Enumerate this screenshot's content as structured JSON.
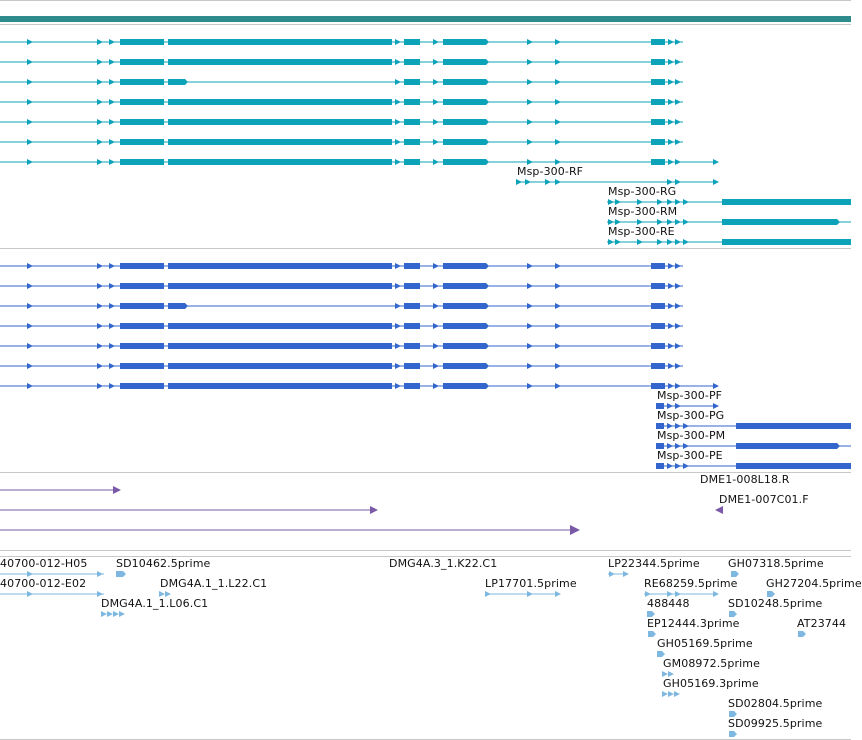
{
  "colors": {
    "scale_bar": "#2f8c8c",
    "track_rna": "#0ca3b8",
    "track_cds": "#3366cc",
    "track_clone": "#7a5aa8",
    "track_est": "#7eb8e0",
    "divider": "#c8c8c8"
  },
  "rna_track": {
    "labels": [
      "Msp-300-RF",
      "Msp-300-RG",
      "Msp-300-RM",
      "Msp-300-RE"
    ]
  },
  "protein_track": {
    "labels": [
      "Msp-300-PF",
      "Msp-300-PG",
      "Msp-300-PM",
      "Msp-300-PE"
    ]
  },
  "clone_track": {
    "labels": [
      "DME1-008L18.R",
      "DME1-007C01.F"
    ]
  },
  "est_track": {
    "labels": [
      "40700-012-H05",
      "SD10462.5prime",
      "DMG4A.3_1.K22.C1",
      "LP22344.5prime",
      "GH07318.5prime",
      "40700-012-E02",
      "DMG4A.1_1.L22.C1",
      "LP17701.5prime",
      "RE68259.5prime",
      "GH27204.5prime",
      "DMG4A.1_1.L06.C1",
      "488448",
      "SD10248.5prime",
      "EP12444.3prime",
      "AT23744",
      "GH05169.5prime",
      "GM08972.5prime",
      "GH05169.3prime",
      "SD02804.5prime",
      "SD09925.5prime"
    ]
  }
}
